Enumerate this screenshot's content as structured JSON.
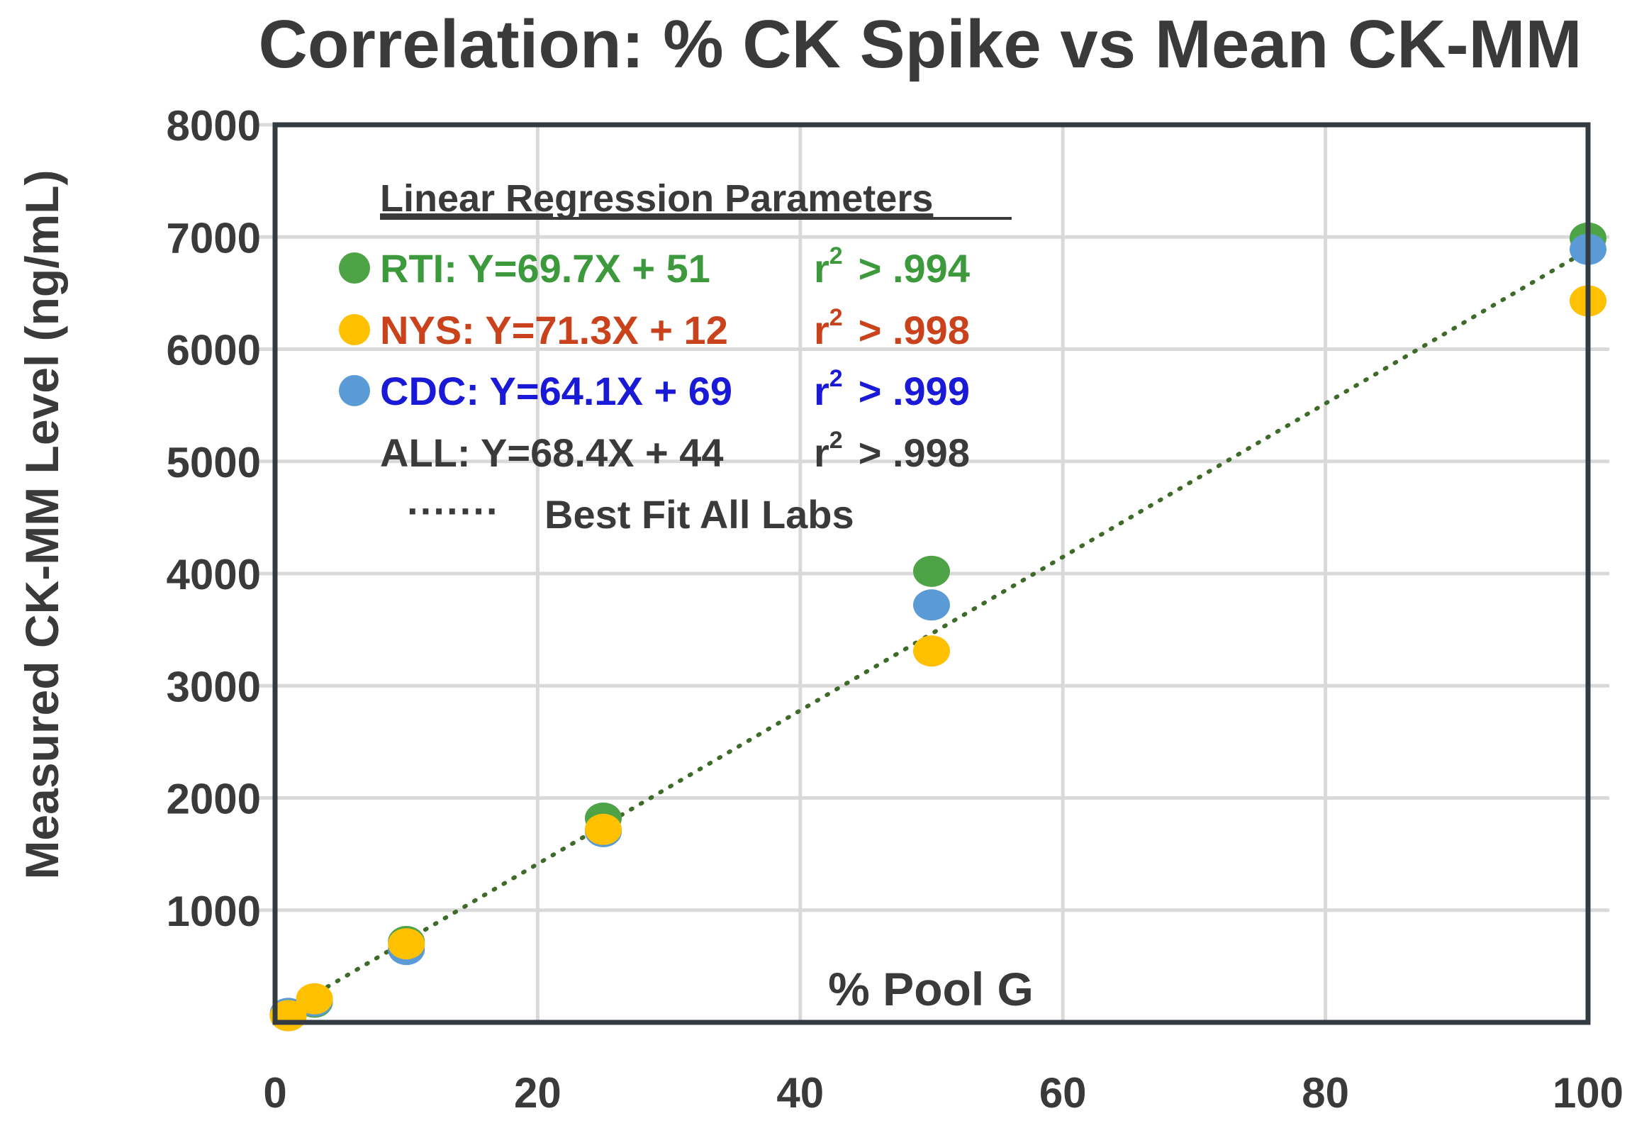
{
  "chart_data": {
    "type": "scatter",
    "title": "Correlation: % CK Spike vs Mean CK-MM",
    "xlabel": "% Pool G",
    "ylabel": "Measured CK-MM Level (ng/mL)",
    "xlim": [
      0,
      100
    ],
    "ylim": [
      0,
      8000
    ],
    "x_ticks": [
      "0",
      "20",
      "40",
      "60",
      "80",
      "100"
    ],
    "y_ticks": [
      "1000",
      "2000",
      "3000",
      "4000",
      "5000",
      "6000",
      "7000",
      "8000"
    ],
    "grid": true,
    "legend_placement": "top-left",
    "legend_title": "Linear Regression Parameters",
    "series": [
      {
        "name": "RTI",
        "color": "#4ea346",
        "equation": "RTI:  Y=69.7X + 51",
        "r2_prefix": "r",
        "r2_sup": "2",
        "r2_value": "> .994",
        "text_color": "#3c9a3c",
        "x": [
          1,
          3,
          10,
          25,
          50,
          100
        ],
        "y": [
          60,
          180,
          720,
          1820,
          4020,
          6990
        ]
      },
      {
        "name": "NYS",
        "color": "#ffc000",
        "equation": "NYS: Y=71.3X + 12",
        "r2_prefix": "r",
        "r2_sup": "2",
        "r2_value": "> .998",
        "text_color": "#c9421b",
        "x": [
          1,
          3,
          10,
          25,
          50,
          100
        ],
        "y": [
          60,
          210,
          700,
          1720,
          3310,
          6430
        ]
      },
      {
        "name": "CDC",
        "color": "#5b9bd5",
        "equation": "CDC: Y=64.1X + 69",
        "r2_prefix": "r",
        "r2_sup": "2",
        "r2_value": "> .999",
        "text_color": "#1a1ad6",
        "x": [
          1,
          3,
          10,
          25,
          50,
          100
        ],
        "y": [
          80,
          190,
          650,
          1700,
          3720,
          6890
        ]
      }
    ],
    "all_fit": {
      "equation": "ALL:  Y=68.4X + 44",
      "r2_prefix": "r",
      "r2_sup": "2",
      "r2_value": "> .998",
      "text_color": "#3a3a3a",
      "slope": 68.4,
      "intercept": 44,
      "line_color": "#3f6b2a",
      "line_label": "Best Fit All Labs",
      "line_symbol": "·······"
    }
  }
}
